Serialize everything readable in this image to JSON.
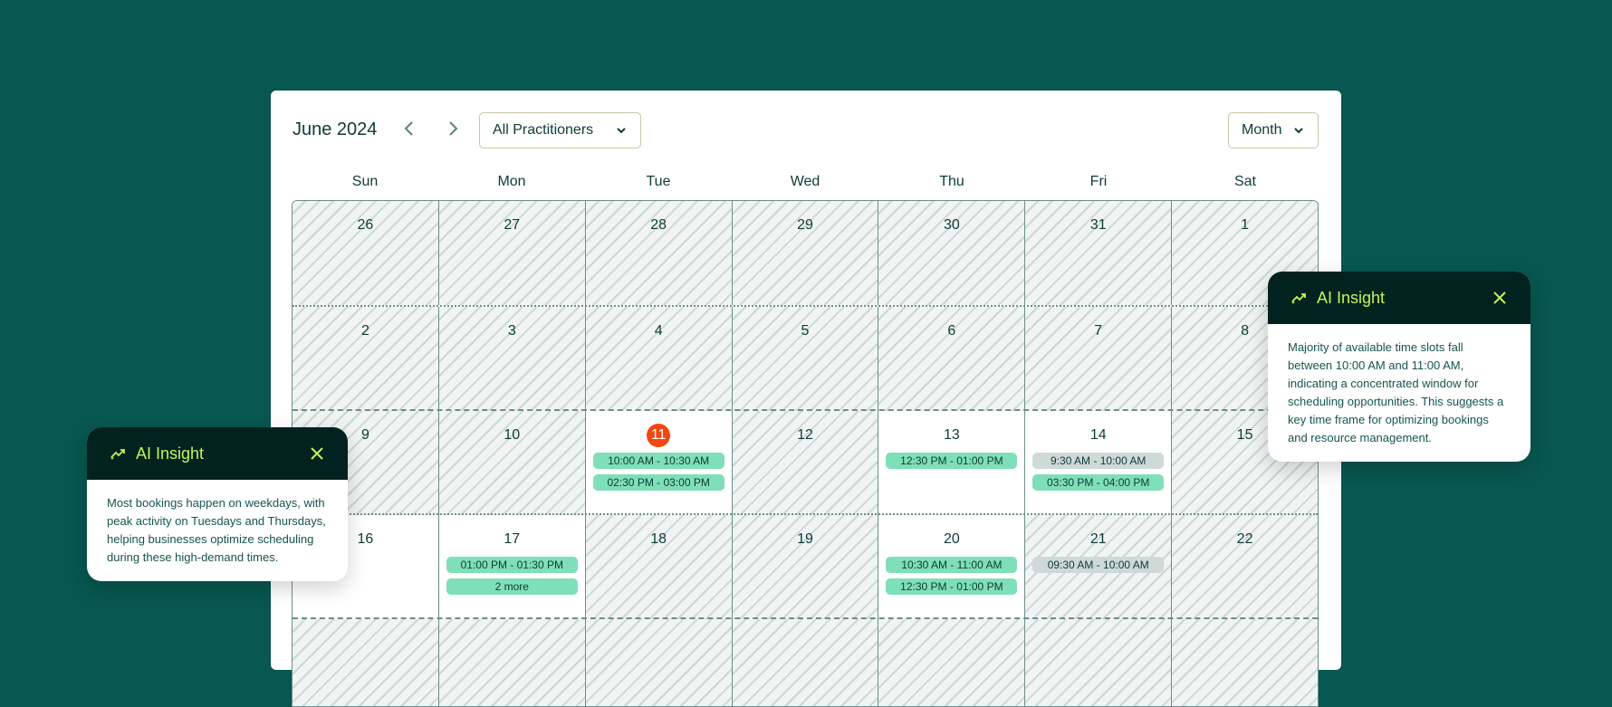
{
  "header": {
    "title": "June 2024",
    "practitioner_select": "All Practitioners",
    "view_select": "Month"
  },
  "weekdays": [
    "Sun",
    "Mon",
    "Tue",
    "Wed",
    "Thu",
    "Fri",
    "Sat"
  ],
  "colors": {
    "background": "#085750",
    "available": "#7fdfb8",
    "unavailable": "#cfd9d7",
    "today": "#f2470f",
    "insight_header": "#022220",
    "insight_accent": "#c6f45a"
  },
  "weeks": [
    {
      "sep": "",
      "days": [
        {
          "n": "26",
          "h": true
        },
        {
          "n": "27",
          "h": true
        },
        {
          "n": "28",
          "h": true
        },
        {
          "n": "29",
          "h": true
        },
        {
          "n": "30",
          "h": true
        },
        {
          "n": "31",
          "h": true
        },
        {
          "n": "1",
          "h": true
        }
      ]
    },
    {
      "sep": "dot",
      "days": [
        {
          "n": "2",
          "h": true
        },
        {
          "n": "3",
          "h": true
        },
        {
          "n": "4",
          "h": true
        },
        {
          "n": "5",
          "h": true
        },
        {
          "n": "6",
          "h": true
        },
        {
          "n": "7",
          "h": true
        },
        {
          "n": "8",
          "h": true
        }
      ]
    },
    {
      "sep": "dash",
      "days": [
        {
          "n": "9",
          "h": true
        },
        {
          "n": "10",
          "h": true
        },
        {
          "n": "11",
          "h": false,
          "today": true,
          "ev": [
            {
              "t": "10:00 AM - 10:30 AM",
              "k": "avail"
            },
            {
              "t": "02:30 PM - 03:00 PM",
              "k": "avail"
            }
          ]
        },
        {
          "n": "12",
          "h": true
        },
        {
          "n": "13",
          "h": false,
          "ev": [
            {
              "t": "12:30 PM - 01:00 PM",
              "k": "avail"
            }
          ]
        },
        {
          "n": "14",
          "h": false,
          "ev": [
            {
              "t": "9:30 AM - 10:00 AM",
              "k": "busy"
            },
            {
              "t": "03:30 PM - 04:00 PM",
              "k": "avail"
            }
          ]
        },
        {
          "n": "15",
          "h": true
        }
      ]
    },
    {
      "sep": "dot",
      "days": [
        {
          "n": "16",
          "h": false
        },
        {
          "n": "17",
          "h": false,
          "ev": [
            {
              "t": "01:00 PM - 01:30 PM",
              "k": "avail"
            },
            {
              "t": "2 more",
              "k": "avail"
            }
          ]
        },
        {
          "n": "18",
          "h": true
        },
        {
          "n": "19",
          "h": true
        },
        {
          "n": "20",
          "h": false,
          "ev": [
            {
              "t": "10:30 AM - 11:00 AM",
              "k": "avail"
            },
            {
              "t": "12:30 PM - 01:00 PM",
              "k": "avail"
            }
          ]
        },
        {
          "n": "21",
          "h": true,
          "ev": [
            {
              "t": "09:30 AM - 10:00 AM",
              "k": "busy"
            }
          ]
        },
        {
          "n": "22",
          "h": true
        }
      ]
    },
    {
      "sep": "dash",
      "days": [
        {
          "n": "",
          "h": true
        },
        {
          "n": "",
          "h": true
        },
        {
          "n": "",
          "h": true
        },
        {
          "n": "",
          "h": true
        },
        {
          "n": "",
          "h": true
        },
        {
          "n": "",
          "h": true
        },
        {
          "n": "",
          "h": true
        }
      ]
    }
  ],
  "insights": [
    {
      "title": "AI Insight",
      "icon": "trending-sparkle-icon",
      "text": "Most bookings happen on weekdays, with peak activity on Tuesdays and Thursdays, helping businesses optimize scheduling during these high-demand times."
    },
    {
      "title": "AI Insight",
      "icon": "trending-sparkle-icon",
      "text": "Majority of available time slots fall between 10:00 AM and 11:00 AM, indicating a concentrated window for scheduling opportunities. This suggests a key time frame for optimizing bookings and resource management."
    }
  ]
}
